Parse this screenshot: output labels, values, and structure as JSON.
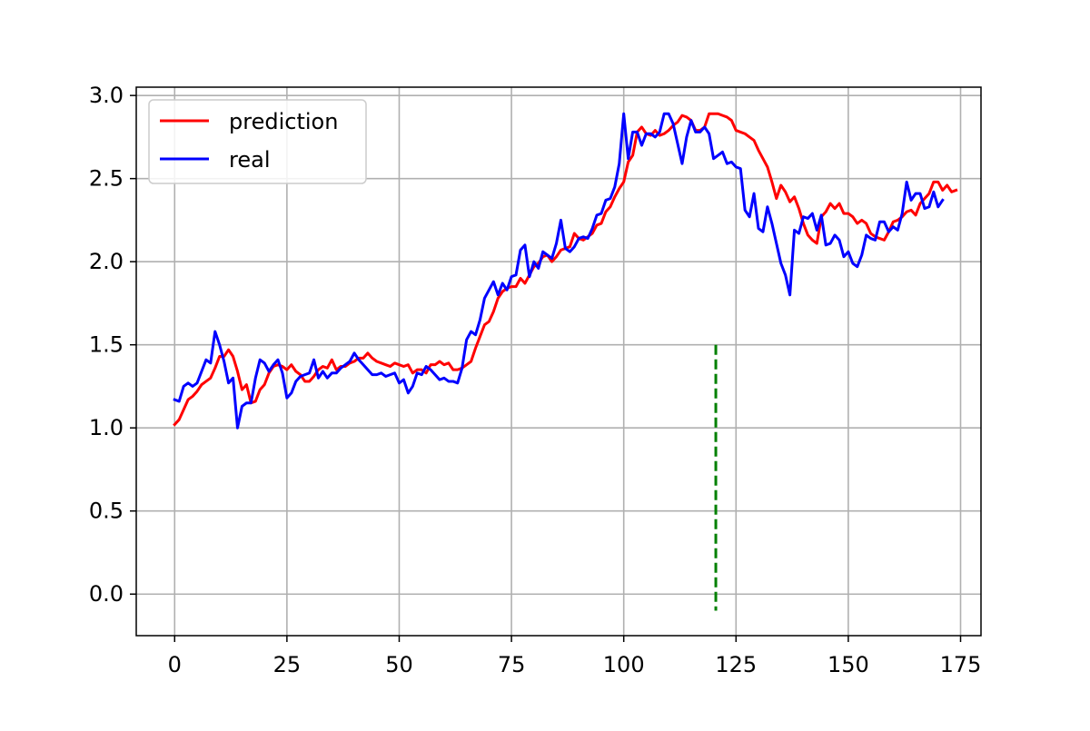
{
  "chart_data": {
    "type": "line",
    "title": "",
    "xlabel": "",
    "ylabel": "",
    "xlim": [
      -8.55,
      179.55
    ],
    "ylim": [
      -0.25,
      3.05
    ],
    "xticks": [
      0,
      25,
      50,
      75,
      100,
      125,
      150,
      175
    ],
    "xtick_labels": [
      "0",
      "25",
      "50",
      "75",
      "100",
      "125",
      "150",
      "175"
    ],
    "yticks": [
      0.0,
      0.5,
      1.0,
      1.5,
      2.0,
      2.5,
      3.0
    ],
    "ytick_labels": [
      "0.0",
      "0.5",
      "1.0",
      "1.5",
      "2.0",
      "2.5",
      "3.0"
    ],
    "grid": true,
    "legend": {
      "position": "top-left"
    },
    "series": [
      {
        "name": "prediction",
        "color": "#ff0000",
        "values": [
          1.02,
          1.05,
          1.11,
          1.17,
          1.19,
          1.22,
          1.26,
          1.28,
          1.3,
          1.36,
          1.43,
          1.43,
          1.47,
          1.43,
          1.34,
          1.23,
          1.26,
          1.15,
          1.16,
          1.23,
          1.26,
          1.33,
          1.37,
          1.38,
          1.37,
          1.35,
          1.38,
          1.34,
          1.32,
          1.28,
          1.28,
          1.31,
          1.35,
          1.37,
          1.36,
          1.41,
          1.35,
          1.37,
          1.37,
          1.39,
          1.4,
          1.42,
          1.42,
          1.45,
          1.42,
          1.4,
          1.39,
          1.38,
          1.37,
          1.39,
          1.38,
          1.37,
          1.38,
          1.33,
          1.35,
          1.35,
          1.33,
          1.38,
          1.38,
          1.4,
          1.38,
          1.39,
          1.35,
          1.35,
          1.36,
          1.38,
          1.4,
          1.48,
          1.55,
          1.62,
          1.64,
          1.7,
          1.78,
          1.82,
          1.84,
          1.85,
          1.85,
          1.9,
          1.87,
          1.92,
          1.97,
          1.99,
          2.03,
          2.04,
          2.0,
          2.03,
          2.07,
          2.08,
          2.09,
          2.17,
          2.14,
          2.13,
          2.15,
          2.17,
          2.22,
          2.23,
          2.3,
          2.33,
          2.39,
          2.44,
          2.48,
          2.6,
          2.64,
          2.78,
          2.81,
          2.77,
          2.76,
          2.79,
          2.76,
          2.77,
          2.79,
          2.82,
          2.84,
          2.88,
          2.87,
          2.85,
          2.79,
          2.79,
          2.81,
          2.89,
          2.89,
          2.89,
          2.88,
          2.87,
          2.85,
          2.79,
          2.78,
          2.77,
          2.75,
          2.73,
          2.67,
          2.62,
          2.57,
          2.48,
          2.38,
          2.46,
          2.42,
          2.36,
          2.39,
          2.32,
          2.23,
          2.16,
          2.13,
          2.11,
          2.27,
          2.3,
          2.35,
          2.32,
          2.35,
          2.29,
          2.29,
          2.27,
          2.23,
          2.25,
          2.23,
          2.17,
          2.15,
          2.14,
          2.13,
          2.18,
          2.24,
          2.25,
          2.27,
          2.3,
          2.31,
          2.28,
          2.35,
          2.38,
          2.41,
          2.48,
          2.48,
          2.43,
          2.46,
          2.42,
          2.43
        ]
      },
      {
        "name": "real",
        "color": "#0000ff",
        "values": [
          1.17,
          1.16,
          1.25,
          1.27,
          1.25,
          1.27,
          1.34,
          1.41,
          1.39,
          1.58,
          1.5,
          1.4,
          1.27,
          1.3,
          1.0,
          1.13,
          1.15,
          1.15,
          1.3,
          1.41,
          1.39,
          1.34,
          1.38,
          1.41,
          1.33,
          1.18,
          1.21,
          1.28,
          1.31,
          1.32,
          1.33,
          1.41,
          1.3,
          1.34,
          1.3,
          1.33,
          1.33,
          1.36,
          1.38,
          1.4,
          1.45,
          1.41,
          1.38,
          1.35,
          1.32,
          1.32,
          1.33,
          1.31,
          1.32,
          1.33,
          1.27,
          1.29,
          1.21,
          1.25,
          1.33,
          1.32,
          1.37,
          1.35,
          1.32,
          1.29,
          1.3,
          1.28,
          1.28,
          1.27,
          1.36,
          1.53,
          1.58,
          1.56,
          1.65,
          1.78,
          1.83,
          1.88,
          1.8,
          1.87,
          1.83,
          1.91,
          1.92,
          2.07,
          2.1,
          1.91,
          2.0,
          1.96,
          2.06,
          2.04,
          2.02,
          2.11,
          2.25,
          2.08,
          2.06,
          2.09,
          2.14,
          2.15,
          2.14,
          2.2,
          2.28,
          2.29,
          2.37,
          2.38,
          2.45,
          2.59,
          2.89,
          2.62,
          2.78,
          2.78,
          2.7,
          2.77,
          2.77,
          2.75,
          2.78,
          2.89,
          2.89,
          2.83,
          2.71,
          2.59,
          2.75,
          2.85,
          2.78,
          2.78,
          2.81,
          2.77,
          2.62,
          2.64,
          2.66,
          2.59,
          2.6,
          2.57,
          2.56,
          2.31,
          2.27,
          2.41,
          2.2,
          2.18,
          2.33,
          2.23,
          2.11,
          1.99,
          1.92,
          1.8,
          2.19,
          2.17,
          2.27,
          2.26,
          2.29,
          2.19,
          2.28,
          2.1,
          2.11,
          2.16,
          2.13,
          2.03,
          2.06,
          1.99,
          1.97,
          2.04,
          2.16,
          2.14,
          2.13,
          2.24,
          2.24,
          2.18,
          2.21,
          2.19,
          2.29,
          2.48,
          2.37,
          2.41,
          2.41,
          2.32,
          2.33,
          2.42,
          2.33,
          2.37
        ]
      }
    ],
    "annotations": [
      {
        "type": "vline",
        "x": 120.5,
        "y_from": -0.1,
        "y_to": 1.5,
        "color": "#008000",
        "style": "dashed"
      }
    ]
  }
}
